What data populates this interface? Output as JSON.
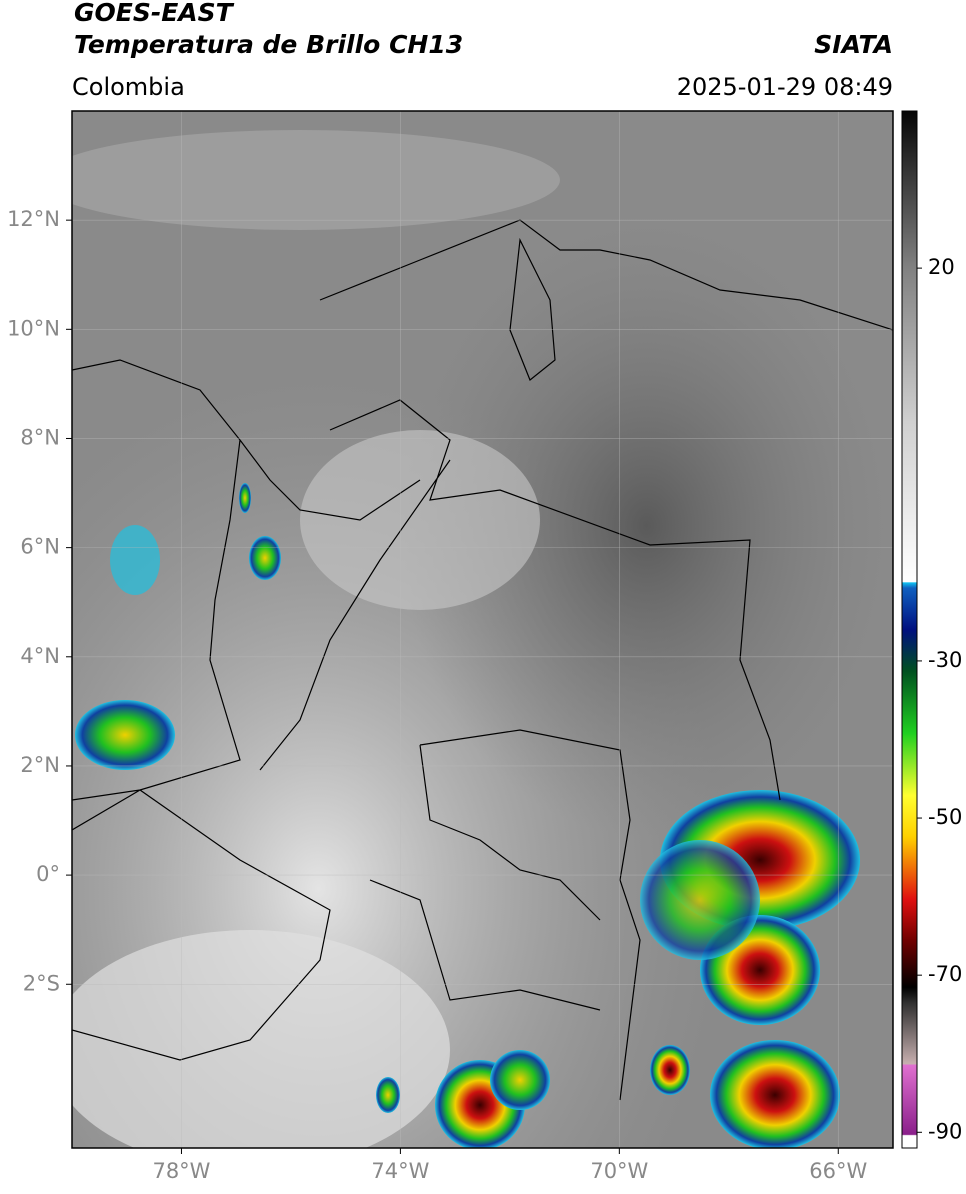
{
  "header": {
    "title": "GOES-EAST",
    "subtitle": "Temperatura de Brillo CH13",
    "source": "SIATA",
    "region": "Colombia",
    "timestamp": "2025-01-29 08:49"
  },
  "map": {
    "xlim": [
      -80,
      -65
    ],
    "ylim": [
      -5,
      14
    ],
    "xticks": [
      {
        "value": -78,
        "label": "78°W"
      },
      {
        "value": -74,
        "label": "74°W"
      },
      {
        "value": -70,
        "label": "70°W"
      },
      {
        "value": -66,
        "label": "66°W"
      }
    ],
    "yticks": [
      {
        "value": 12,
        "label": "12°N"
      },
      {
        "value": 10,
        "label": "10°N"
      },
      {
        "value": 8,
        "label": "8°N"
      },
      {
        "value": 6,
        "label": "6°N"
      },
      {
        "value": 4,
        "label": "4°N"
      },
      {
        "value": 2,
        "label": "2°N"
      },
      {
        "value": 0,
        "label": "0°"
      },
      {
        "value": -2,
        "label": "2°S"
      }
    ],
    "grid": true
  },
  "colorbar": {
    "lim": [
      -92,
      40
    ],
    "ticks": [
      20,
      -30,
      -50,
      -70,
      -90
    ]
  }
}
